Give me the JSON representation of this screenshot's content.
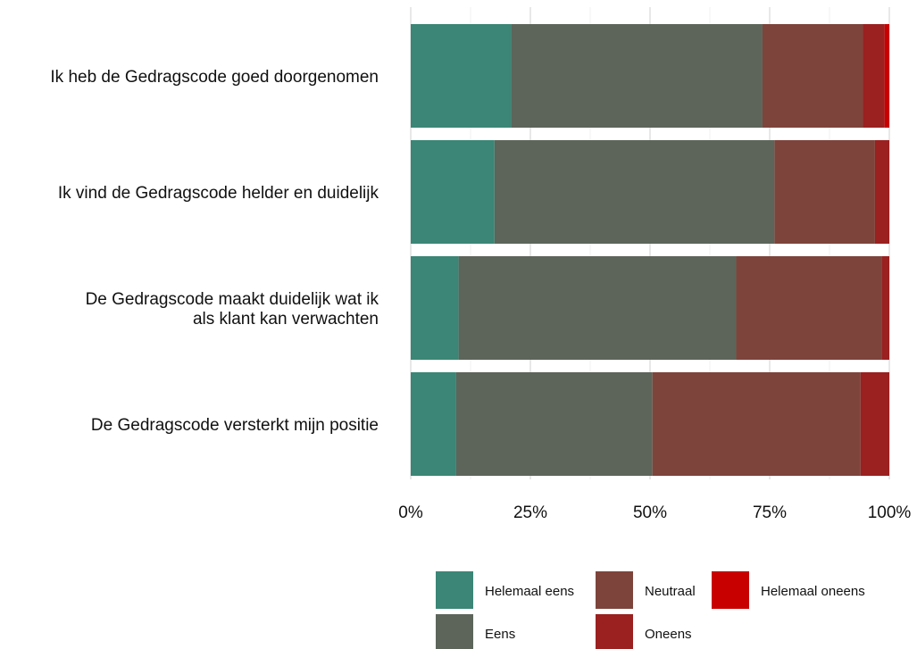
{
  "chart_data": {
    "type": "bar",
    "orientation": "horizontal",
    "stacked": "percent",
    "title": "",
    "xlabel": "",
    "ylabel": "",
    "xlim": [
      0,
      100
    ],
    "x_ticks": [
      "0%",
      "25%",
      "50%",
      "75%",
      "100%"
    ],
    "grid": true,
    "legend_position": "bottom-right",
    "categories": [
      [
        "Ik heb de Gedragscode goed doorgenomen"
      ],
      [
        "Ik vind de Gedragscode helder en duidelijk"
      ],
      [
        "De Gedragscode maakt duidelijk wat ik",
        "als klant kan verwachten"
      ],
      [
        "De Gedragscode versterkt mijn positie"
      ]
    ],
    "series": [
      {
        "name": "Helemaal eens",
        "color": "#3b8676",
        "values": [
          21,
          17.5,
          10,
          9.5
        ]
      },
      {
        "name": "Eens",
        "color": "#5d655a",
        "values": [
          52.5,
          58.5,
          58,
          41
        ]
      },
      {
        "name": "Neutraal",
        "color": "#7d443b",
        "values": [
          21,
          21,
          30.5,
          43.5
        ]
      },
      {
        "name": "Oneens",
        "color": "#9b2020",
        "values": [
          4.5,
          3,
          1.5,
          6
        ]
      },
      {
        "name": "Helemaal oneens",
        "color": "#c80000",
        "values": [
          1,
          0,
          0,
          0
        ]
      }
    ],
    "legend_order": [
      "Helemaal eens",
      "Neutraal",
      "Helemaal oneens",
      "Eens",
      "Oneens"
    ]
  }
}
